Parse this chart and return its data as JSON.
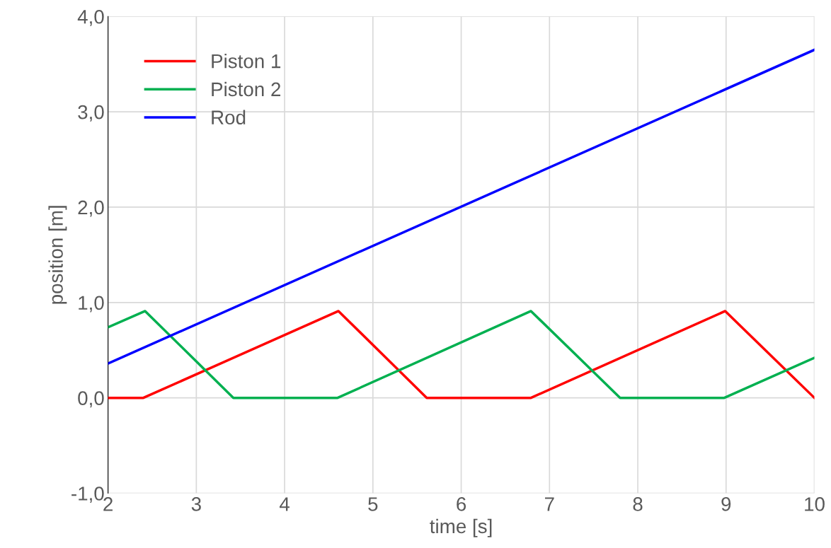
{
  "chart_data": {
    "type": "line",
    "xlabel": "time [s]",
    "ylabel": "position [m]",
    "xlim": [
      2,
      10
    ],
    "xticks": [
      2,
      3,
      4,
      5,
      6,
      7,
      8,
      9,
      10
    ],
    "ylim": [
      -1,
      4
    ],
    "yticks": [
      {
        "value": -1,
        "label": "-1,0"
      },
      {
        "value": 0,
        "label": "0,0"
      },
      {
        "value": 1,
        "label": "1,0"
      },
      {
        "value": 2,
        "label": "2,0"
      },
      {
        "value": 3,
        "label": "3,0"
      },
      {
        "value": 4,
        "label": "4,0"
      }
    ],
    "grid": true,
    "legend": "top left",
    "line_style": "solid",
    "marker": "none",
    "series": [
      {
        "name": "Piston 1",
        "color": "#ff0000",
        "x": [
          2,
          2.4,
          4.61,
          5.61,
          6.79,
          8.99,
          10
        ],
        "values": [
          0,
          0,
          0.91,
          0,
          0,
          0.91,
          0
        ]
      },
      {
        "name": "Piston 2",
        "color": "#00b050",
        "x": [
          2,
          2.42,
          3.42,
          4.6,
          6.79,
          7.8,
          8.98,
          10
        ],
        "values": [
          0.74,
          0.91,
          0,
          0,
          0.91,
          0,
          0,
          0.42
        ]
      },
      {
        "name": "Rod",
        "color": "#0000ff",
        "x": [
          2,
          10
        ],
        "values": [
          0.36,
          3.65
        ]
      }
    ]
  }
}
